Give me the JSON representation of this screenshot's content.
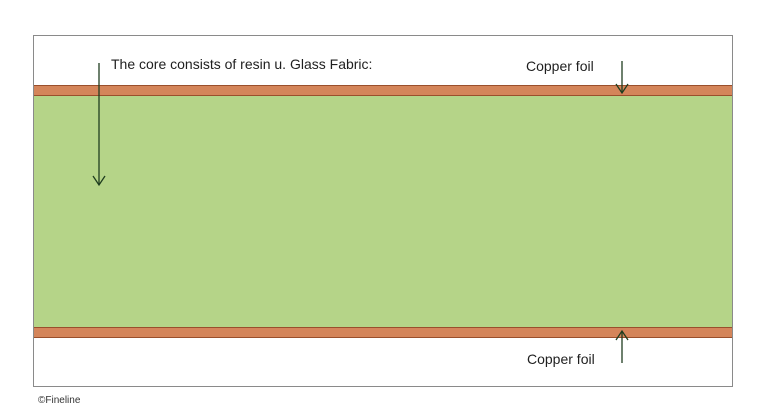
{
  "diagram": {
    "core_label": "The core consists of resin u. Glass Fabric:",
    "copper_label_top": "Copper foil",
    "copper_label_bottom": "Copper foil",
    "credit": "©Fineline",
    "colors": {
      "copper": "#d4855a",
      "copper_edge": "#9a4f2c",
      "core": "#b5d488",
      "arrow": "#1f3d1f",
      "frame": "#8a8a8a"
    }
  }
}
